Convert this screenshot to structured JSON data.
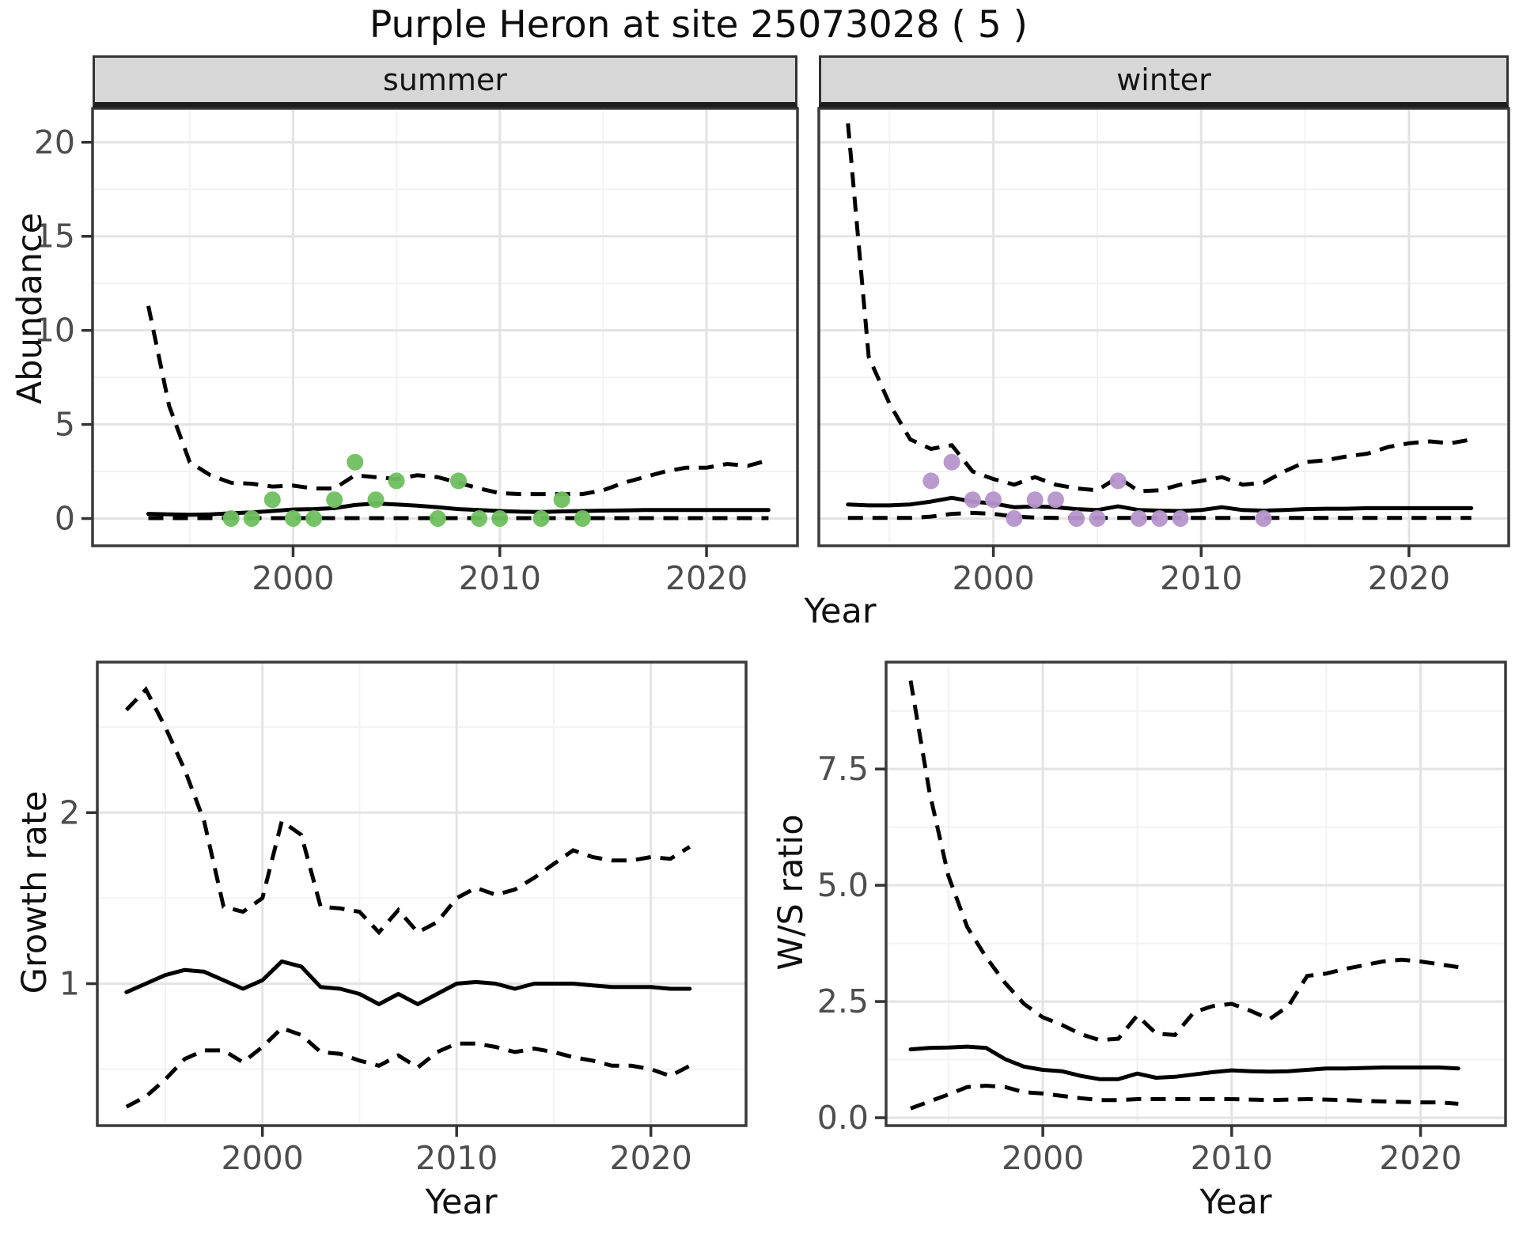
{
  "title": "Purple Heron at site 25073028 ( 5 )",
  "colors": {
    "summer_point": "#6EC05E",
    "winter_point": "#B695CB",
    "line": "#000000",
    "strip_fill": "#D7D7D7",
    "panel_border": "#3A3A3A",
    "grid_major": "#E3E3E3",
    "grid_minor": "#F2F2F2",
    "tick_label": "#4D4D4D"
  },
  "chart_data": {
    "type": "line",
    "title": "Purple Heron at site 25073028 ( 5 )",
    "xlabel": "Year",
    "legend": "none",
    "grid": "on",
    "panels": [
      {
        "id": "summer",
        "facet_label": "summer",
        "ylabel": "Abundance",
        "xlabel": "Year",
        "xlim": [
          1990.3,
          2024.4
        ],
        "ylim": [
          -1.45,
          21.8
        ],
        "xticks": {
          "values": [
            2000,
            2010,
            2020
          ],
          "labels": [
            "2000",
            "2010",
            "2020"
          ]
        },
        "yticks": {
          "values": [
            0,
            5,
            10,
            15,
            20
          ],
          "labels": [
            "0",
            "5",
            "10",
            "15",
            "20"
          ]
        },
        "xminor": [
          1995,
          2005,
          2015
        ],
        "yminor": [
          2.5,
          7.5,
          12.5,
          17.5
        ],
        "x": [
          1993,
          1994,
          1995,
          1996,
          1997,
          1998,
          1999,
          2000,
          2001,
          2002,
          2003,
          2004,
          2005,
          2006,
          2007,
          2008,
          2009,
          2010,
          2011,
          2012,
          2013,
          2014,
          2015,
          2016,
          2017,
          2018,
          2019,
          2020,
          2021,
          2022,
          2023
        ],
        "series": [
          {
            "name": "mean",
            "style": "solid",
            "values": [
              0.25,
              0.22,
              0.2,
              0.22,
              0.28,
              0.33,
              0.4,
              0.48,
              0.5,
              0.55,
              0.72,
              0.8,
              0.75,
              0.68,
              0.6,
              0.5,
              0.45,
              0.4,
              0.36,
              0.35,
              0.38,
              0.4,
              0.42,
              0.43,
              0.45,
              0.45,
              0.45,
              0.45,
              0.45,
              0.45,
              0.45
            ]
          },
          {
            "name": "upper_ci",
            "style": "dashed",
            "values": [
              11.3,
              6.0,
              3.0,
              2.3,
              1.9,
              1.85,
              1.7,
              1.75,
              1.6,
              1.6,
              2.3,
              2.2,
              2.1,
              2.3,
              2.2,
              1.9,
              1.6,
              1.35,
              1.3,
              1.3,
              1.3,
              1.3,
              1.5,
              1.9,
              2.2,
              2.5,
              2.7,
              2.7,
              2.9,
              2.8,
              3.1
            ]
          },
          {
            "name": "lower_ci",
            "style": "dashed",
            "values": [
              0.02,
              0.02,
              0.02,
              0.02,
              0.02,
              0.02,
              0.02,
              0.02,
              0.02,
              0.02,
              0.02,
              0.02,
              0.02,
              0.02,
              0.02,
              0.02,
              0.02,
              0.02,
              0.02,
              0.02,
              0.02,
              0.02,
              0.02,
              0.02,
              0.02,
              0.02,
              0.02,
              0.02,
              0.02,
              0.02,
              0.02
            ]
          }
        ],
        "points": {
          "name": "summer observations",
          "color": "#6EC05E",
          "data": [
            [
              1997,
              0
            ],
            [
              1998,
              0
            ],
            [
              1999,
              1
            ],
            [
              2000,
              0
            ],
            [
              2001,
              0
            ],
            [
              2002,
              1
            ],
            [
              2003,
              3
            ],
            [
              2004,
              1
            ],
            [
              2005,
              2
            ],
            [
              2007,
              0
            ],
            [
              2008,
              2
            ],
            [
              2009,
              0
            ],
            [
              2010,
              0
            ],
            [
              2012,
              0
            ],
            [
              2013,
              1
            ],
            [
              2014,
              0
            ]
          ]
        }
      },
      {
        "id": "winter",
        "facet_label": "winter",
        "ylabel": "Abundance",
        "xlabel": "Year",
        "xlim": [
          1991.6,
          2024.8
        ],
        "ylim": [
          -1.45,
          21.8
        ],
        "xticks": {
          "values": [
            2000,
            2010,
            2020
          ],
          "labels": [
            "2000",
            "2010",
            "2020"
          ]
        },
        "yticks": {
          "values": [
            0,
            5,
            10,
            15,
            20
          ],
          "labels": []
        },
        "xminor": [
          1995,
          2005,
          2015
        ],
        "yminor": [
          2.5,
          7.5,
          12.5,
          17.5
        ],
        "x": [
          1993,
          1994,
          1995,
          1996,
          1997,
          1998,
          1999,
          2000,
          2001,
          2002,
          2003,
          2004,
          2005,
          2006,
          2007,
          2008,
          2009,
          2010,
          2011,
          2012,
          2013,
          2014,
          2015,
          2016,
          2017,
          2018,
          2019,
          2020,
          2021,
          2022,
          2023
        ],
        "series": [
          {
            "name": "mean",
            "style": "solid",
            "values": [
              0.75,
              0.7,
              0.7,
              0.75,
              0.9,
              1.1,
              0.9,
              0.8,
              0.6,
              0.65,
              0.6,
              0.5,
              0.45,
              0.65,
              0.45,
              0.42,
              0.4,
              0.45,
              0.6,
              0.45,
              0.42,
              0.45,
              0.5,
              0.52,
              0.52,
              0.55,
              0.55,
              0.55,
              0.55,
              0.55,
              0.55
            ]
          },
          {
            "name": "upper_ci",
            "style": "dashed",
            "values": [
              21.0,
              8.6,
              6.1,
              4.2,
              3.7,
              3.9,
              2.5,
              2.1,
              1.8,
              2.2,
              1.8,
              1.6,
              1.5,
              2.2,
              1.45,
              1.5,
              1.8,
              2.0,
              2.2,
              1.8,
              1.9,
              2.5,
              3.0,
              3.1,
              3.3,
              3.45,
              3.8,
              4.0,
              4.1,
              4.0,
              4.2
            ]
          },
          {
            "name": "lower_ci",
            "style": "dashed",
            "values": [
              0.03,
              0.03,
              0.03,
              0.03,
              0.1,
              0.25,
              0.3,
              0.25,
              0.1,
              0.05,
              0.03,
              0.03,
              0.03,
              0.03,
              0.03,
              0.03,
              0.03,
              0.03,
              0.03,
              0.03,
              0.03,
              0.03,
              0.03,
              0.03,
              0.03,
              0.03,
              0.03,
              0.03,
              0.03,
              0.03,
              0.03
            ]
          }
        ],
        "points": {
          "name": "winter observations",
          "color": "#B695CB",
          "data": [
            [
              1997,
              2
            ],
            [
              1998,
              3
            ],
            [
              1999,
              1
            ],
            [
              2000,
              1
            ],
            [
              2001,
              0
            ],
            [
              2002,
              1
            ],
            [
              2003,
              1
            ],
            [
              2004,
              0
            ],
            [
              2005,
              0
            ],
            [
              2006,
              2
            ],
            [
              2007,
              0
            ],
            [
              2008,
              0
            ],
            [
              2009,
              0
            ],
            [
              2013,
              0
            ]
          ]
        }
      },
      {
        "id": "growth",
        "facet_label": "",
        "ylabel": "Growth rate",
        "xlabel": "Year",
        "xlim": [
          1991.5,
          2024.9
        ],
        "ylim": [
          0.17,
          2.88
        ],
        "xticks": {
          "values": [
            2000,
            2010,
            2020
          ],
          "labels": [
            "2000",
            "2010",
            "2020"
          ]
        },
        "yticks": {
          "values": [
            1,
            2
          ],
          "labels": [
            "1",
            "2"
          ]
        },
        "xminor": [
          1995,
          2005,
          2015
        ],
        "yminor": [
          0.5,
          1.5,
          2.5
        ],
        "x": [
          1993,
          1994,
          1995,
          1996,
          1997,
          1998,
          1999,
          2000,
          2001,
          2002,
          2003,
          2004,
          2005,
          2006,
          2007,
          2008,
          2009,
          2010,
          2011,
          2012,
          2013,
          2014,
          2015,
          2016,
          2017,
          2018,
          2019,
          2020,
          2021,
          2022
        ],
        "series": [
          {
            "name": "mean",
            "style": "solid",
            "values": [
              0.95,
              1.0,
              1.05,
              1.08,
              1.07,
              1.02,
              0.97,
              1.02,
              1.13,
              1.1,
              0.98,
              0.97,
              0.94,
              0.88,
              0.94,
              0.88,
              0.94,
              1.0,
              1.01,
              1.0,
              0.97,
              1.0,
              1.0,
              1.0,
              0.99,
              0.98,
              0.98,
              0.98,
              0.97,
              0.97
            ]
          },
          {
            "name": "upper_ci",
            "style": "dashed",
            "values": [
              2.6,
              2.72,
              2.5,
              2.25,
              1.95,
              1.45,
              1.42,
              1.5,
              1.95,
              1.87,
              1.45,
              1.44,
              1.42,
              1.3,
              1.43,
              1.3,
              1.36,
              1.5,
              1.56,
              1.52,
              1.55,
              1.62,
              1.7,
              1.78,
              1.74,
              1.72,
              1.72,
              1.74,
              1.73,
              1.8
            ]
          },
          {
            "name": "lower_ci",
            "style": "dashed",
            "values": [
              0.28,
              0.34,
              0.44,
              0.56,
              0.61,
              0.61,
              0.54,
              0.63,
              0.74,
              0.7,
              0.6,
              0.59,
              0.55,
              0.52,
              0.58,
              0.51,
              0.6,
              0.65,
              0.65,
              0.63,
              0.6,
              0.62,
              0.6,
              0.57,
              0.55,
              0.52,
              0.52,
              0.5,
              0.46,
              0.52
            ]
          }
        ]
      },
      {
        "id": "ws",
        "facet_label": "",
        "ylabel": "W/S ratio",
        "xlabel": "Year",
        "xlim": [
          1991.7,
          2024.5
        ],
        "ylim": [
          -0.17,
          9.8
        ],
        "xticks": {
          "values": [
            2000,
            2010,
            2020
          ],
          "labels": [
            "2000",
            "2010",
            "2020"
          ]
        },
        "yticks": {
          "values": [
            0,
            2.5,
            5,
            7.5
          ],
          "labels": [
            "0.0",
            "2.5",
            "5.0",
            "7.5"
          ]
        },
        "xminor": [
          1995,
          2005,
          2015
        ],
        "yminor": [
          1.25,
          3.75,
          6.25,
          8.75
        ],
        "x": [
          1993,
          1994,
          1995,
          1996,
          1997,
          1998,
          1999,
          2000,
          2001,
          2002,
          2003,
          2004,
          2005,
          2006,
          2007,
          2008,
          2009,
          2010,
          2011,
          2012,
          2013,
          2014,
          2015,
          2016,
          2017,
          2018,
          2019,
          2020,
          2021,
          2022
        ],
        "series": [
          {
            "name": "mean",
            "style": "solid",
            "values": [
              1.47,
              1.5,
              1.51,
              1.53,
              1.5,
              1.26,
              1.1,
              1.03,
              1.0,
              0.9,
              0.83,
              0.83,
              0.95,
              0.86,
              0.88,
              0.93,
              0.98,
              1.02,
              1.0,
              0.99,
              1.0,
              1.03,
              1.06,
              1.06,
              1.07,
              1.08,
              1.08,
              1.08,
              1.08,
              1.06
            ]
          },
          {
            "name": "upper_ci",
            "style": "dashed",
            "values": [
              9.4,
              7.0,
              5.2,
              4.1,
              3.45,
              2.9,
              2.45,
              2.16,
              2.0,
              1.8,
              1.67,
              1.7,
              2.2,
              1.81,
              1.78,
              2.27,
              2.4,
              2.45,
              2.3,
              2.12,
              2.4,
              3.05,
              3.1,
              3.2,
              3.28,
              3.36,
              3.4,
              3.36,
              3.3,
              3.24
            ]
          },
          {
            "name": "lower_ci",
            "style": "dashed",
            "values": [
              0.2,
              0.35,
              0.5,
              0.66,
              0.69,
              0.66,
              0.55,
              0.52,
              0.47,
              0.42,
              0.38,
              0.38,
              0.4,
              0.4,
              0.4,
              0.4,
              0.4,
              0.4,
              0.39,
              0.38,
              0.39,
              0.4,
              0.39,
              0.38,
              0.36,
              0.35,
              0.34,
              0.33,
              0.33,
              0.3
            ]
          }
        ]
      }
    ]
  }
}
